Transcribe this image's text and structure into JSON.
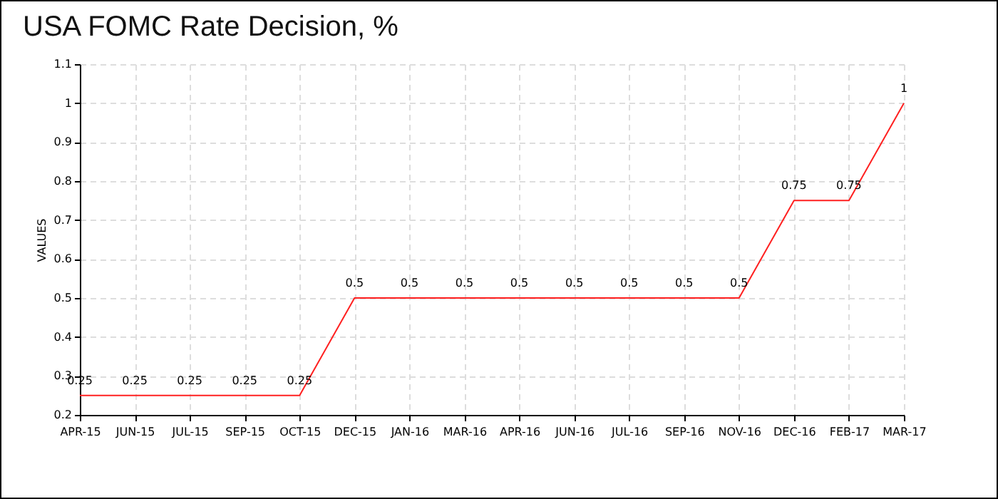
{
  "chart_data": {
    "type": "line",
    "title": "USA FOMC Rate Decision, %",
    "ylabel": "VALUES",
    "categories": [
      "APR-15",
      "JUN-15",
      "JUL-15",
      "SEP-15",
      "OCT-15",
      "DEC-15",
      "JAN-16",
      "MAR-16",
      "APR-16",
      "JUN-16",
      "JUL-16",
      "SEP-16",
      "NOV-16",
      "DEC-16",
      "FEB-17",
      "MAR-17"
    ],
    "series": [
      {
        "color": "#ff2020",
        "values": [
          0.25,
          0.25,
          0.25,
          0.25,
          0.25,
          0.5,
          0.5,
          0.5,
          0.5,
          0.5,
          0.5,
          0.5,
          0.5,
          0.75,
          0.75,
          1
        ]
      }
    ],
    "ylim": [
      0.2,
      1.1
    ],
    "yticks": [
      0.2,
      0.3,
      0.4,
      0.5,
      0.6,
      0.7,
      0.8,
      0.9,
      1,
      1.1
    ],
    "grid": true,
    "data_labels": true,
    "marker": "none",
    "line_style": "solid"
  }
}
